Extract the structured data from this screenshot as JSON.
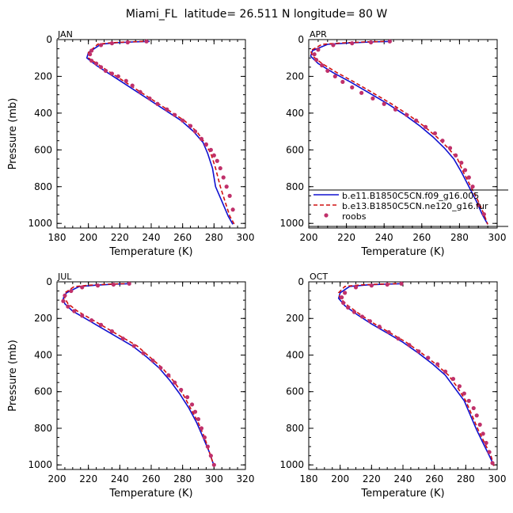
{
  "title": "Miami_FL  latitude= 26.511 N longitude= 80 W",
  "colors": {
    "model1": "#1010d0",
    "model2": "#d01010",
    "obs": "#c0306a"
  },
  "legend": {
    "placement": "inside lower part of APR panel",
    "entries": [
      {
        "label": "b.e11.B1850C5CN.f09_g16.005",
        "style": "solid-line",
        "color": "#1010d0"
      },
      {
        "label": "b.e13.B1850C5CN.ne120_g16.fur",
        "style": "dashed-line",
        "color": "#d01010"
      },
      {
        "label": "roobs",
        "style": "dots",
        "color": "#c0306a"
      }
    ]
  },
  "chart_data": [
    {
      "type": "line",
      "panel": "JAN",
      "xlabel": "Temperature (K)",
      "ylabel": "Pressure (mb)",
      "xlim": [
        180,
        300
      ],
      "ylim": [
        0,
        1025
      ],
      "y_inverted": true,
      "xticks": [
        "180",
        "200",
        "220",
        "240",
        "260",
        "280",
        "300"
      ],
      "yticks": [
        "0",
        "200",
        "400",
        "600",
        "800",
        "1000"
      ],
      "series": [
        {
          "name": "b.e11.B1850C5CN.f09_g16.005",
          "style": "solid",
          "x": [
            239,
            228,
            218,
            208,
            200,
            199,
            205,
            214,
            223,
            232,
            241,
            250,
            259,
            267,
            273,
            276,
            279,
            281,
            285,
            289,
            292
          ],
          "y": [
            10,
            13,
            17,
            25,
            70,
            100,
            140,
            190,
            240,
            290,
            340,
            390,
            440,
            500,
            560,
            620,
            700,
            800,
            880,
            960,
            1005
          ]
        },
        {
          "name": "b.e13.B1850C5CN.ne120_g16.fur",
          "style": "dashed",
          "x": [
            235,
            225,
            215,
            206,
            200,
            200,
            207,
            216,
            225,
            234,
            243,
            252,
            261,
            269,
            274,
            278,
            281,
            284,
            287,
            290,
            293
          ],
          "y": [
            10,
            13,
            17,
            25,
            70,
            100,
            140,
            190,
            240,
            290,
            340,
            390,
            440,
            500,
            560,
            620,
            700,
            800,
            880,
            960,
            1005
          ]
        },
        {
          "name": "roobs",
          "style": "dots",
          "x": [
            237,
            225,
            215,
            208,
            202,
            201,
            202,
            205,
            208,
            211,
            215,
            219,
            224,
            228,
            233,
            239,
            244,
            250,
            255,
            260,
            265,
            268,
            272,
            275,
            278,
            280,
            282,
            284,
            286,
            288,
            290,
            292
          ],
          "y": [
            10,
            15,
            20,
            30,
            60,
            80,
            115,
            130,
            150,
            170,
            185,
            200,
            225,
            250,
            285,
            320,
            350,
            380,
            410,
            440,
            470,
            500,
            540,
            570,
            600,
            630,
            660,
            700,
            750,
            800,
            850,
            925
          ]
        }
      ]
    },
    {
      "type": "line",
      "panel": "APR",
      "xlabel": "Temperature (K)",
      "ylabel": "",
      "xlim": [
        200,
        300
      ],
      "ylim": [
        0,
        1025
      ],
      "y_inverted": true,
      "xticks": [
        "200",
        "220",
        "240",
        "260",
        "280",
        "300"
      ],
      "yticks": [
        "0",
        "200",
        "400",
        "600",
        "800",
        "1000"
      ],
      "series": [
        {
          "name": "b.e11.B1850C5CN.f09_g16.005",
          "style": "solid",
          "x": [
            244,
            233,
            222,
            210,
            202,
            201,
            205,
            213,
            222,
            232,
            242,
            251,
            259,
            266,
            272,
            277,
            281,
            285,
            289,
            292,
            295
          ],
          "y": [
            10,
            13,
            18,
            26,
            60,
            90,
            130,
            180,
            230,
            290,
            350,
            410,
            470,
            530,
            590,
            650,
            720,
            800,
            880,
            950,
            1005
          ]
        },
        {
          "name": "b.e13.B1850C5CN.ne120_g16.fur",
          "style": "dashed",
          "x": [
            240,
            229,
            218,
            207,
            201,
            202,
            207,
            215,
            224,
            234,
            244,
            253,
            261,
            268,
            274,
            279,
            282,
            286,
            290,
            293,
            295
          ],
          "y": [
            10,
            13,
            18,
            26,
            60,
            90,
            130,
            180,
            230,
            290,
            350,
            410,
            470,
            530,
            590,
            650,
            720,
            800,
            880,
            950,
            1005
          ]
        },
        {
          "name": "roobs",
          "style": "dots",
          "x": [
            243,
            233,
            223,
            213,
            205,
            203,
            204,
            207,
            210,
            214,
            218,
            223,
            228,
            234,
            240,
            246,
            252,
            257,
            262,
            267,
            271,
            275,
            278,
            281,
            283,
            285,
            287,
            290,
            293
          ],
          "y": [
            10,
            15,
            20,
            30,
            55,
            80,
            110,
            140,
            170,
            200,
            230,
            260,
            290,
            320,
            350,
            380,
            410,
            440,
            475,
            510,
            550,
            590,
            630,
            670,
            710,
            750,
            800,
            900,
            950
          ]
        }
      ]
    },
    {
      "type": "line",
      "panel": "JUL",
      "xlabel": "Temperature (K)",
      "ylabel": "Pressure (mb)",
      "xlim": [
        200,
        320
      ],
      "ylim": [
        0,
        1025
      ],
      "y_inverted": true,
      "xticks": [
        "200",
        "220",
        "240",
        "260",
        "280",
        "300",
        "320"
      ],
      "yticks": [
        "0",
        "200",
        "400",
        "600",
        "800",
        "1000"
      ],
      "series": [
        {
          "name": "b.e11.B1850C5CN.f09_g16.005",
          "style": "solid",
          "x": [
            247,
            236,
            225,
            214,
            206,
            204,
            205,
            210,
            218,
            228,
            238,
            248,
            257,
            265,
            272,
            278,
            284,
            289,
            293,
            297,
            300
          ],
          "y": [
            10,
            13,
            18,
            26,
            60,
            90,
            120,
            160,
            200,
            250,
            300,
            350,
            410,
            470,
            540,
            610,
            690,
            770,
            850,
            930,
            1005
          ]
        },
        {
          "name": "b.e13.B1850C5CN.ne120_g16.fur",
          "style": "dashed",
          "x": [
            243,
            232,
            221,
            211,
            205,
            205,
            207,
            213,
            221,
            231,
            241,
            251,
            259,
            267,
            274,
            280,
            285,
            290,
            294,
            297,
            300
          ],
          "y": [
            10,
            13,
            18,
            26,
            60,
            90,
            120,
            160,
            200,
            250,
            300,
            350,
            410,
            470,
            540,
            610,
            690,
            770,
            850,
            930,
            1005
          ]
        },
        {
          "name": "roobs",
          "style": "dots",
          "x": [
            246,
            236,
            226,
            216,
            209,
            205,
            204,
            207,
            211,
            216,
            222,
            228,
            235,
            242,
            249,
            255,
            261,
            266,
            271,
            275,
            279,
            283,
            286,
            288,
            290,
            292,
            294,
            296,
            298,
            300
          ],
          "y": [
            10,
            15,
            20,
            30,
            50,
            75,
            105,
            135,
            160,
            185,
            210,
            235,
            270,
            310,
            350,
            390,
            430,
            470,
            510,
            550,
            590,
            630,
            670,
            710,
            750,
            800,
            850,
            900,
            950,
            1000
          ]
        }
      ]
    },
    {
      "type": "line",
      "panel": "OCT",
      "xlabel": "Temperature (K)",
      "ylabel": "",
      "xlim": [
        180,
        300
      ],
      "ylim": [
        0,
        1025
      ],
      "y_inverted": true,
      "xticks": [
        "180",
        "200",
        "220",
        "240",
        "260",
        "280",
        "300"
      ],
      "yticks": [
        "0",
        "200",
        "400",
        "600",
        "800",
        "1000"
      ],
      "series": [
        {
          "name": "b.e11.B1850C5CN.f09_g16.005",
          "style": "solid",
          "x": [
            240,
            228,
            217,
            206,
            200,
            199,
            203,
            211,
            220,
            230,
            240,
            250,
            259,
            267,
            273,
            279,
            283,
            287,
            291,
            295,
            298
          ],
          "y": [
            10,
            13,
            17,
            25,
            60,
            90,
            130,
            180,
            230,
            280,
            330,
            390,
            450,
            510,
            580,
            650,
            730,
            810,
            880,
            950,
            1005
          ]
        },
        {
          "name": "b.e13.B1850C5CN.ne120_g16.fur",
          "style": "dashed",
          "x": [
            236,
            224,
            213,
            203,
            199,
            200,
            205,
            213,
            222,
            232,
            242,
            252,
            261,
            269,
            275,
            280,
            284,
            288,
            292,
            296,
            298
          ],
          "y": [
            10,
            13,
            17,
            25,
            60,
            90,
            130,
            180,
            230,
            280,
            330,
            390,
            450,
            510,
            580,
            650,
            730,
            810,
            880,
            950,
            1005
          ]
        },
        {
          "name": "roobs",
          "style": "dots",
          "x": [
            239,
            230,
            220,
            210,
            203,
            201,
            202,
            205,
            209,
            214,
            219,
            225,
            231,
            237,
            244,
            250,
            256,
            262,
            267,
            272,
            276,
            279,
            282,
            285,
            287,
            289,
            291,
            293,
            295,
            297
          ],
          "y": [
            10,
            15,
            20,
            30,
            60,
            85,
            115,
            140,
            165,
            190,
            215,
            245,
            275,
            310,
            345,
            380,
            415,
            450,
            490,
            530,
            570,
            610,
            650,
            690,
            730,
            780,
            830,
            880,
            930,
            990
          ]
        }
      ]
    }
  ]
}
